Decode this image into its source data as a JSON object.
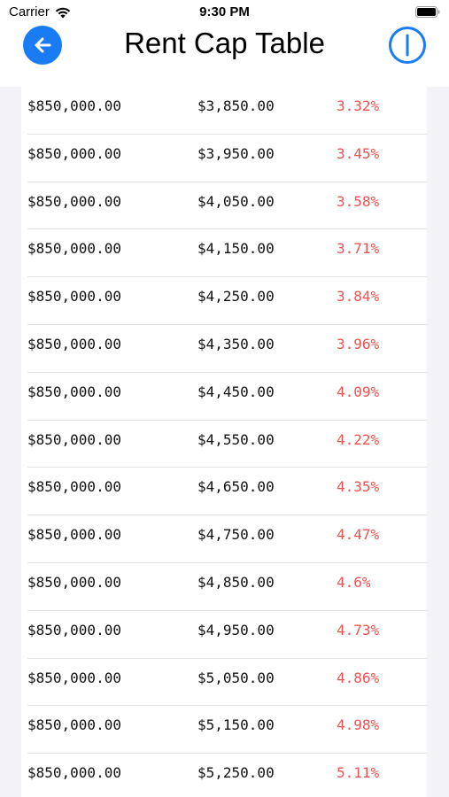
{
  "status_bar": {
    "carrier": "Carrier",
    "time": "9:30 PM"
  },
  "nav": {
    "title": "Rent Cap Table",
    "back_icon": "arrow-left-circle-icon",
    "info_icon": "info-circle-icon",
    "accent_color": "#1a7cf5"
  },
  "table": {
    "cap_color": "#f0514f",
    "rows": [
      {
        "price": "$850,000.00",
        "rent": "$3,850.00",
        "cap": "3.32%"
      },
      {
        "price": "$850,000.00",
        "rent": "$3,950.00",
        "cap": "3.45%"
      },
      {
        "price": "$850,000.00",
        "rent": "$4,050.00",
        "cap": "3.58%"
      },
      {
        "price": "$850,000.00",
        "rent": "$4,150.00",
        "cap": "3.71%"
      },
      {
        "price": "$850,000.00",
        "rent": "$4,250.00",
        "cap": "3.84%"
      },
      {
        "price": "$850,000.00",
        "rent": "$4,350.00",
        "cap": "3.96%"
      },
      {
        "price": "$850,000.00",
        "rent": "$4,450.00",
        "cap": "4.09%"
      },
      {
        "price": "$850,000.00",
        "rent": "$4,550.00",
        "cap": "4.22%"
      },
      {
        "price": "$850,000.00",
        "rent": "$4,650.00",
        "cap": "4.35%"
      },
      {
        "price": "$850,000.00",
        "rent": "$4,750.00",
        "cap": "4.47%"
      },
      {
        "price": "$850,000.00",
        "rent": "$4,850.00",
        "cap": "4.6%"
      },
      {
        "price": "$850,000.00",
        "rent": "$4,950.00",
        "cap": "4.73%"
      },
      {
        "price": "$850,000.00",
        "rent": "$5,050.00",
        "cap": "4.86%"
      },
      {
        "price": "$850,000.00",
        "rent": "$5,150.00",
        "cap": "4.98%"
      },
      {
        "price": "$850,000.00",
        "rent": "$5,250.00",
        "cap": "5.11%"
      }
    ]
  }
}
